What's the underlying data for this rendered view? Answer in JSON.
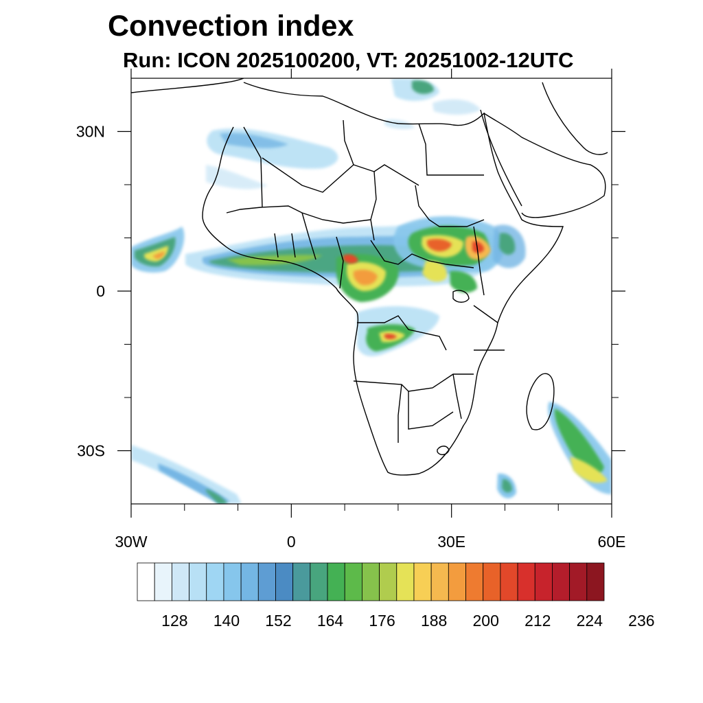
{
  "title": "Convection index",
  "subtitle": "Run: ICON 2025100200,  VT: 20251002-12UTC",
  "map": {
    "lon_range": [
      -30,
      60
    ],
    "lat_range": [
      -40,
      40
    ],
    "x_tick_labels": [
      {
        "lon": -30,
        "label": "30W"
      },
      {
        "lon": 0,
        "label": "0"
      },
      {
        "lon": 30,
        "label": "30E"
      },
      {
        "lon": 60,
        "label": "60E"
      }
    ],
    "y_tick_labels": [
      {
        "lat": 30,
        "label": "30N"
      },
      {
        "lat": 0,
        "label": "0"
      },
      {
        "lat": -30,
        "label": "30S"
      }
    ],
    "minor_lon_ticks": [
      -20,
      -10,
      10,
      20,
      40,
      50
    ],
    "minor_lat_ticks": [
      20,
      10,
      -10,
      -20
    ]
  },
  "colorbar": {
    "colors": [
      "#ffffff",
      "#e8f4fb",
      "#cfe8f7",
      "#b8e0f5",
      "#9fd6f3",
      "#86c6ec",
      "#74b6e4",
      "#5e9dd3",
      "#4b8bc3",
      "#4a9a9c",
      "#48a57e",
      "#44b154",
      "#5dba4a",
      "#86c24c",
      "#b0cc4e",
      "#e5e257",
      "#f7cf55",
      "#f5b94f",
      "#f39c3e",
      "#ee7b30",
      "#e86229",
      "#e2482a",
      "#d8302c",
      "#c7232c",
      "#b41d2b",
      "#a21a27",
      "#8c1620"
    ],
    "labels": [
      {
        "index": 3,
        "text": "128"
      },
      {
        "index": 6,
        "text": "140"
      },
      {
        "index": 9,
        "text": "152"
      },
      {
        "index": 12,
        "text": "164"
      },
      {
        "index": 15,
        "text": "176"
      },
      {
        "index": 18,
        "text": "188"
      },
      {
        "index": 21,
        "text": "200"
      },
      {
        "index": 24,
        "text": "212"
      },
      {
        "index": 27,
        "text": "224"
      },
      {
        "index": 30,
        "text": "236"
      }
    ]
  }
}
